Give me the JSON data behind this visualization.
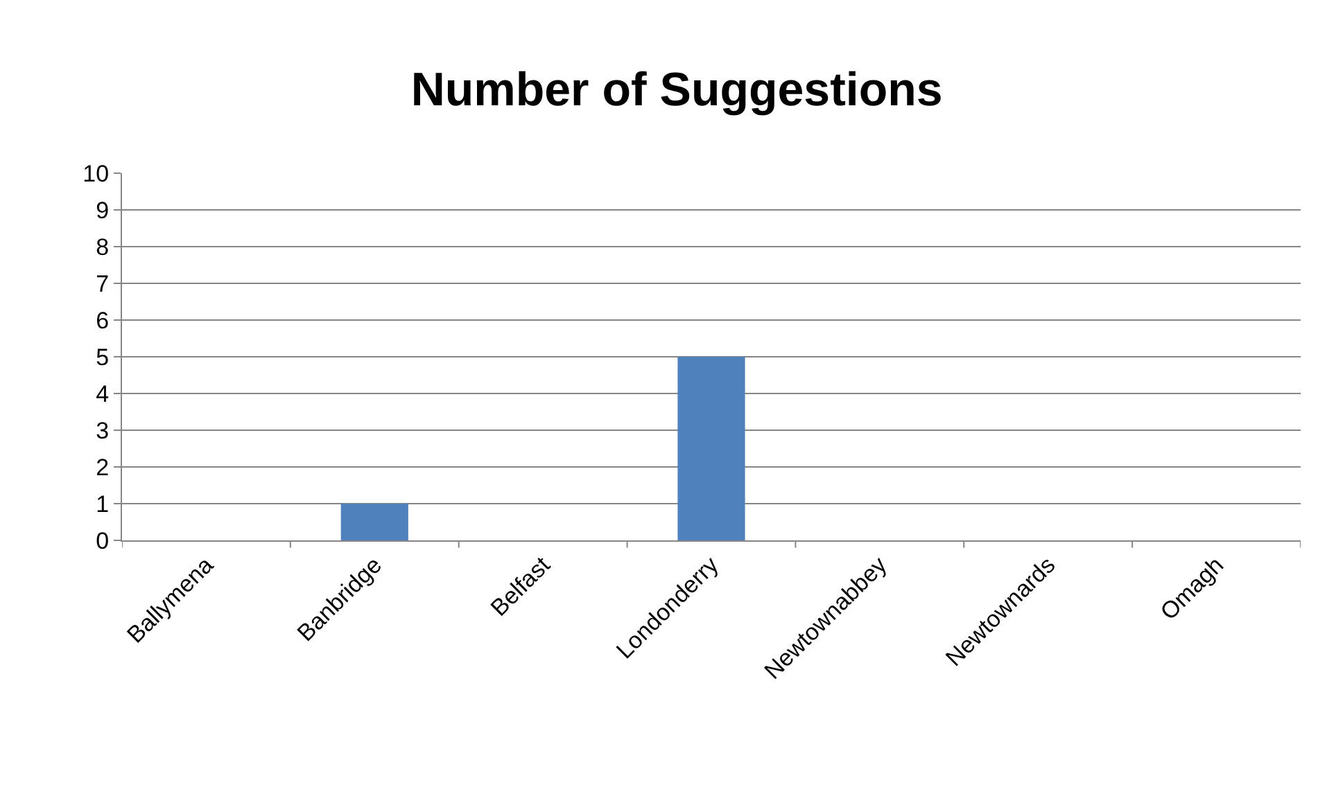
{
  "chart_data": {
    "type": "bar",
    "title": "Number of Suggestions",
    "categories": [
      "Ballymena",
      "Banbridge",
      "Belfast",
      "Londonderry",
      "Newtownabbey",
      "Newtownards",
      "Omagh"
    ],
    "values": [
      0,
      1,
      0,
      5,
      0,
      0,
      0
    ],
    "color": "#4f81bd",
    "ylim": [
      0,
      10
    ],
    "yticks": [
      0,
      1,
      2,
      3,
      4,
      5,
      6,
      7,
      8,
      9,
      10
    ],
    "grid": "y",
    "legend": false
  }
}
